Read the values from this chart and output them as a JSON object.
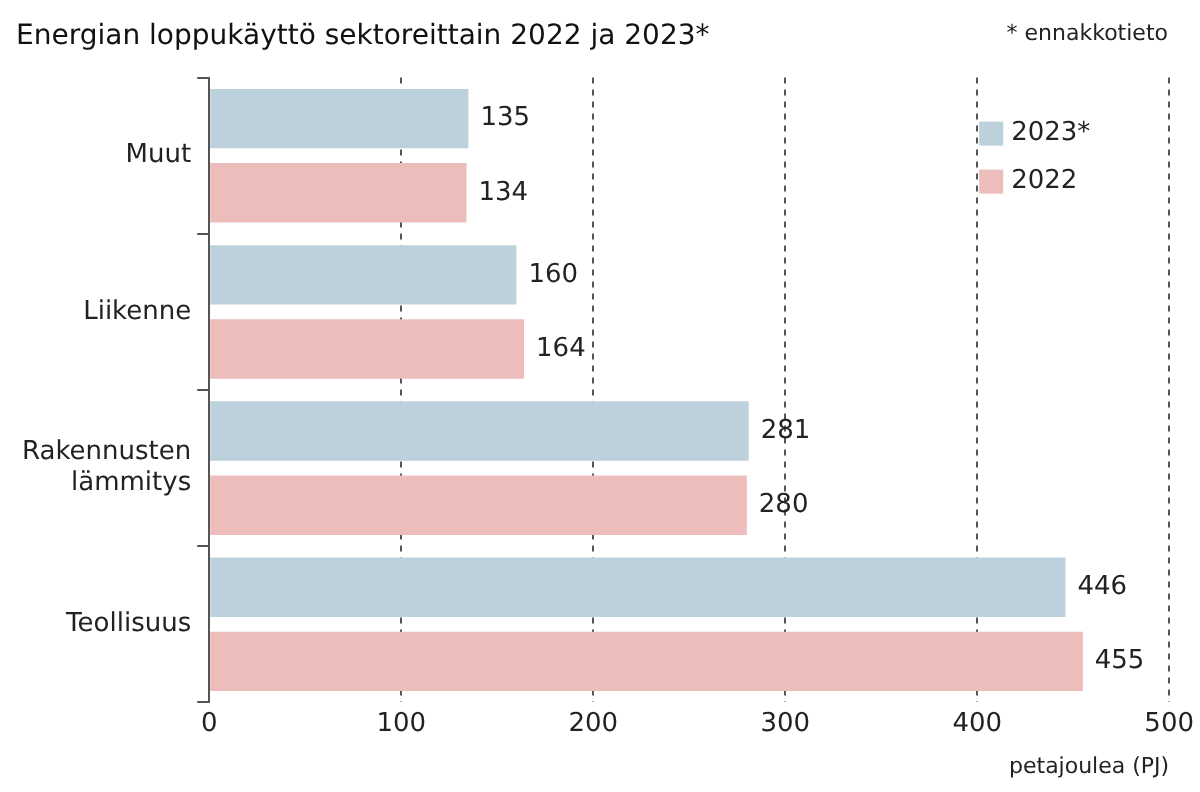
{
  "chart_data": {
    "type": "bar",
    "orientation": "horizontal",
    "title": "Energian loppukäyttö sektoreittain 2022 ja 2023*",
    "xlabel": "petajoulea (PJ)",
    "annotations": [
      "* ennakkotieto"
    ],
    "categories": [
      "Muut",
      "Liikenne",
      "Rakennusten lämmitys",
      "Teollisuus"
    ],
    "series": [
      {
        "name": "2023*",
        "color": "#bdd1dd",
        "values": [
          135,
          160,
          281,
          446
        ]
      },
      {
        "name": "2022",
        "color": "#ecbdba",
        "values": [
          134,
          164,
          280,
          455
        ]
      }
    ],
    "xlim": [
      0,
      500
    ],
    "xticks": [
      0,
      100,
      200,
      300,
      400,
      500
    ],
    "grid": "x",
    "legend": "top right",
    "data_labels": true
  }
}
